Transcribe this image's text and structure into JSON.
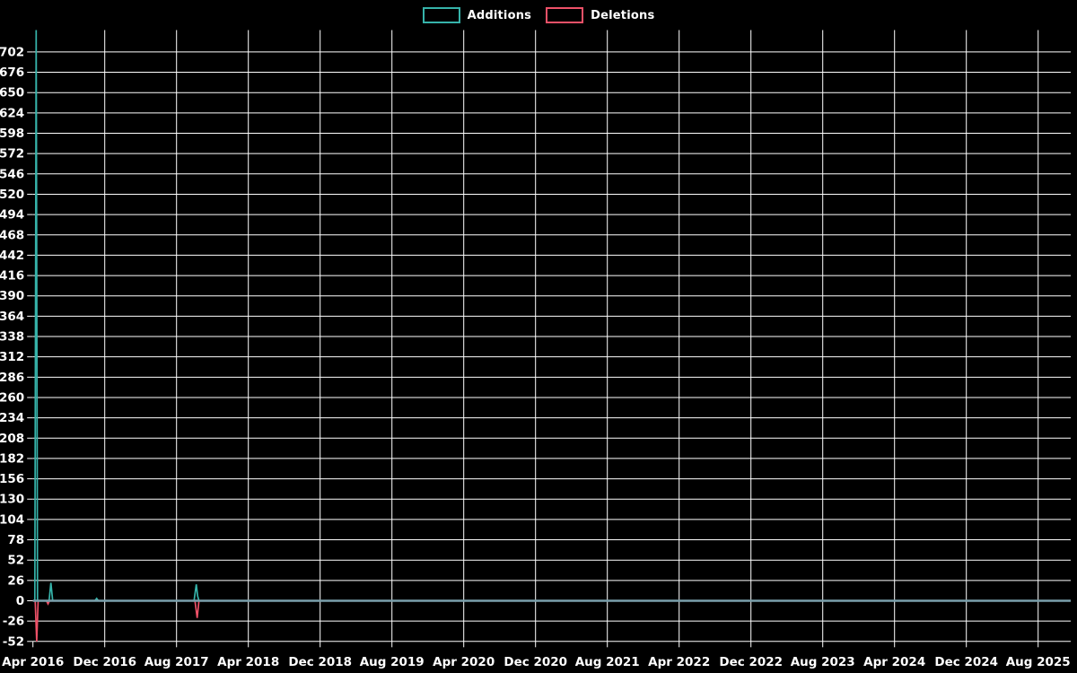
{
  "legend": [
    {
      "label": "Additions",
      "color": "#36b3aa"
    },
    {
      "label": "Deletions",
      "color": "#ee5168"
    }
  ],
  "chart_data": {
    "type": "line",
    "legend_position": "top",
    "grid": true,
    "background_color": "#000000",
    "grid_color": "#ffffff",
    "text_color": "#ffffff",
    "zero_line_color": "#7aa0ac",
    "x_axis": {
      "tick_labels": [
        "Apr 2016",
        "Dec 2016",
        "Aug 2017",
        "Apr 2018",
        "Dec 2018",
        "Aug 2019",
        "Apr 2020",
        "Dec 2020",
        "Aug 2021",
        "Apr 2022",
        "Dec 2022",
        "Aug 2023",
        "Apr 2024",
        "Dec 2024",
        "Aug 2025"
      ],
      "months_between_ticks": 8,
      "start": "Apr 2016",
      "end": "Aug 2025"
    },
    "y_axis": {
      "tick_labels": [
        702,
        676,
        650,
        624,
        598,
        572,
        546,
        520,
        494,
        468,
        442,
        416,
        390,
        364,
        338,
        312,
        286,
        260,
        234,
        208,
        182,
        156,
        130,
        104,
        78,
        52,
        26,
        0,
        -26,
        -52
      ],
      "tick_step": 26,
      "range_min": -52,
      "range_max": 730
    },
    "series": [
      {
        "name": "Additions",
        "color": "#36b3aa",
        "points_months_vs_value": [
          [
            0,
            0
          ],
          [
            0.21,
            0
          ],
          [
            0.36,
            730
          ],
          [
            0.51,
            0
          ],
          [
            1.8,
            0
          ],
          [
            2.0,
            23
          ],
          [
            2.2,
            0
          ],
          [
            6.9,
            0
          ],
          [
            7.1,
            3
          ],
          [
            7.3,
            0
          ],
          [
            17.95,
            0
          ],
          [
            18.2,
            21
          ],
          [
            18.35,
            6
          ],
          [
            18.5,
            0
          ],
          [
            115.6,
            0
          ]
        ]
      },
      {
        "name": "Deletions",
        "color": "#ee5168",
        "points_months_vs_value": [
          [
            0,
            0
          ],
          [
            0.25,
            0
          ],
          [
            0.42,
            -52
          ],
          [
            0.58,
            0
          ],
          [
            1.5,
            0
          ],
          [
            1.68,
            -4
          ],
          [
            1.85,
            0
          ],
          [
            18.05,
            0
          ],
          [
            18.3,
            -22
          ],
          [
            18.5,
            0
          ],
          [
            115.6,
            0
          ]
        ]
      }
    ],
    "notable_spikes": [
      {
        "date": "Apr 2016",
        "additions": 730,
        "deletions": -52
      },
      {
        "date": "Jun 2016",
        "additions": 23,
        "deletions": -4
      },
      {
        "date": "Nov 2016",
        "additions": 3,
        "deletions": 0
      },
      {
        "date": "Oct 2017",
        "additions": 21,
        "deletions": -22
      }
    ]
  }
}
